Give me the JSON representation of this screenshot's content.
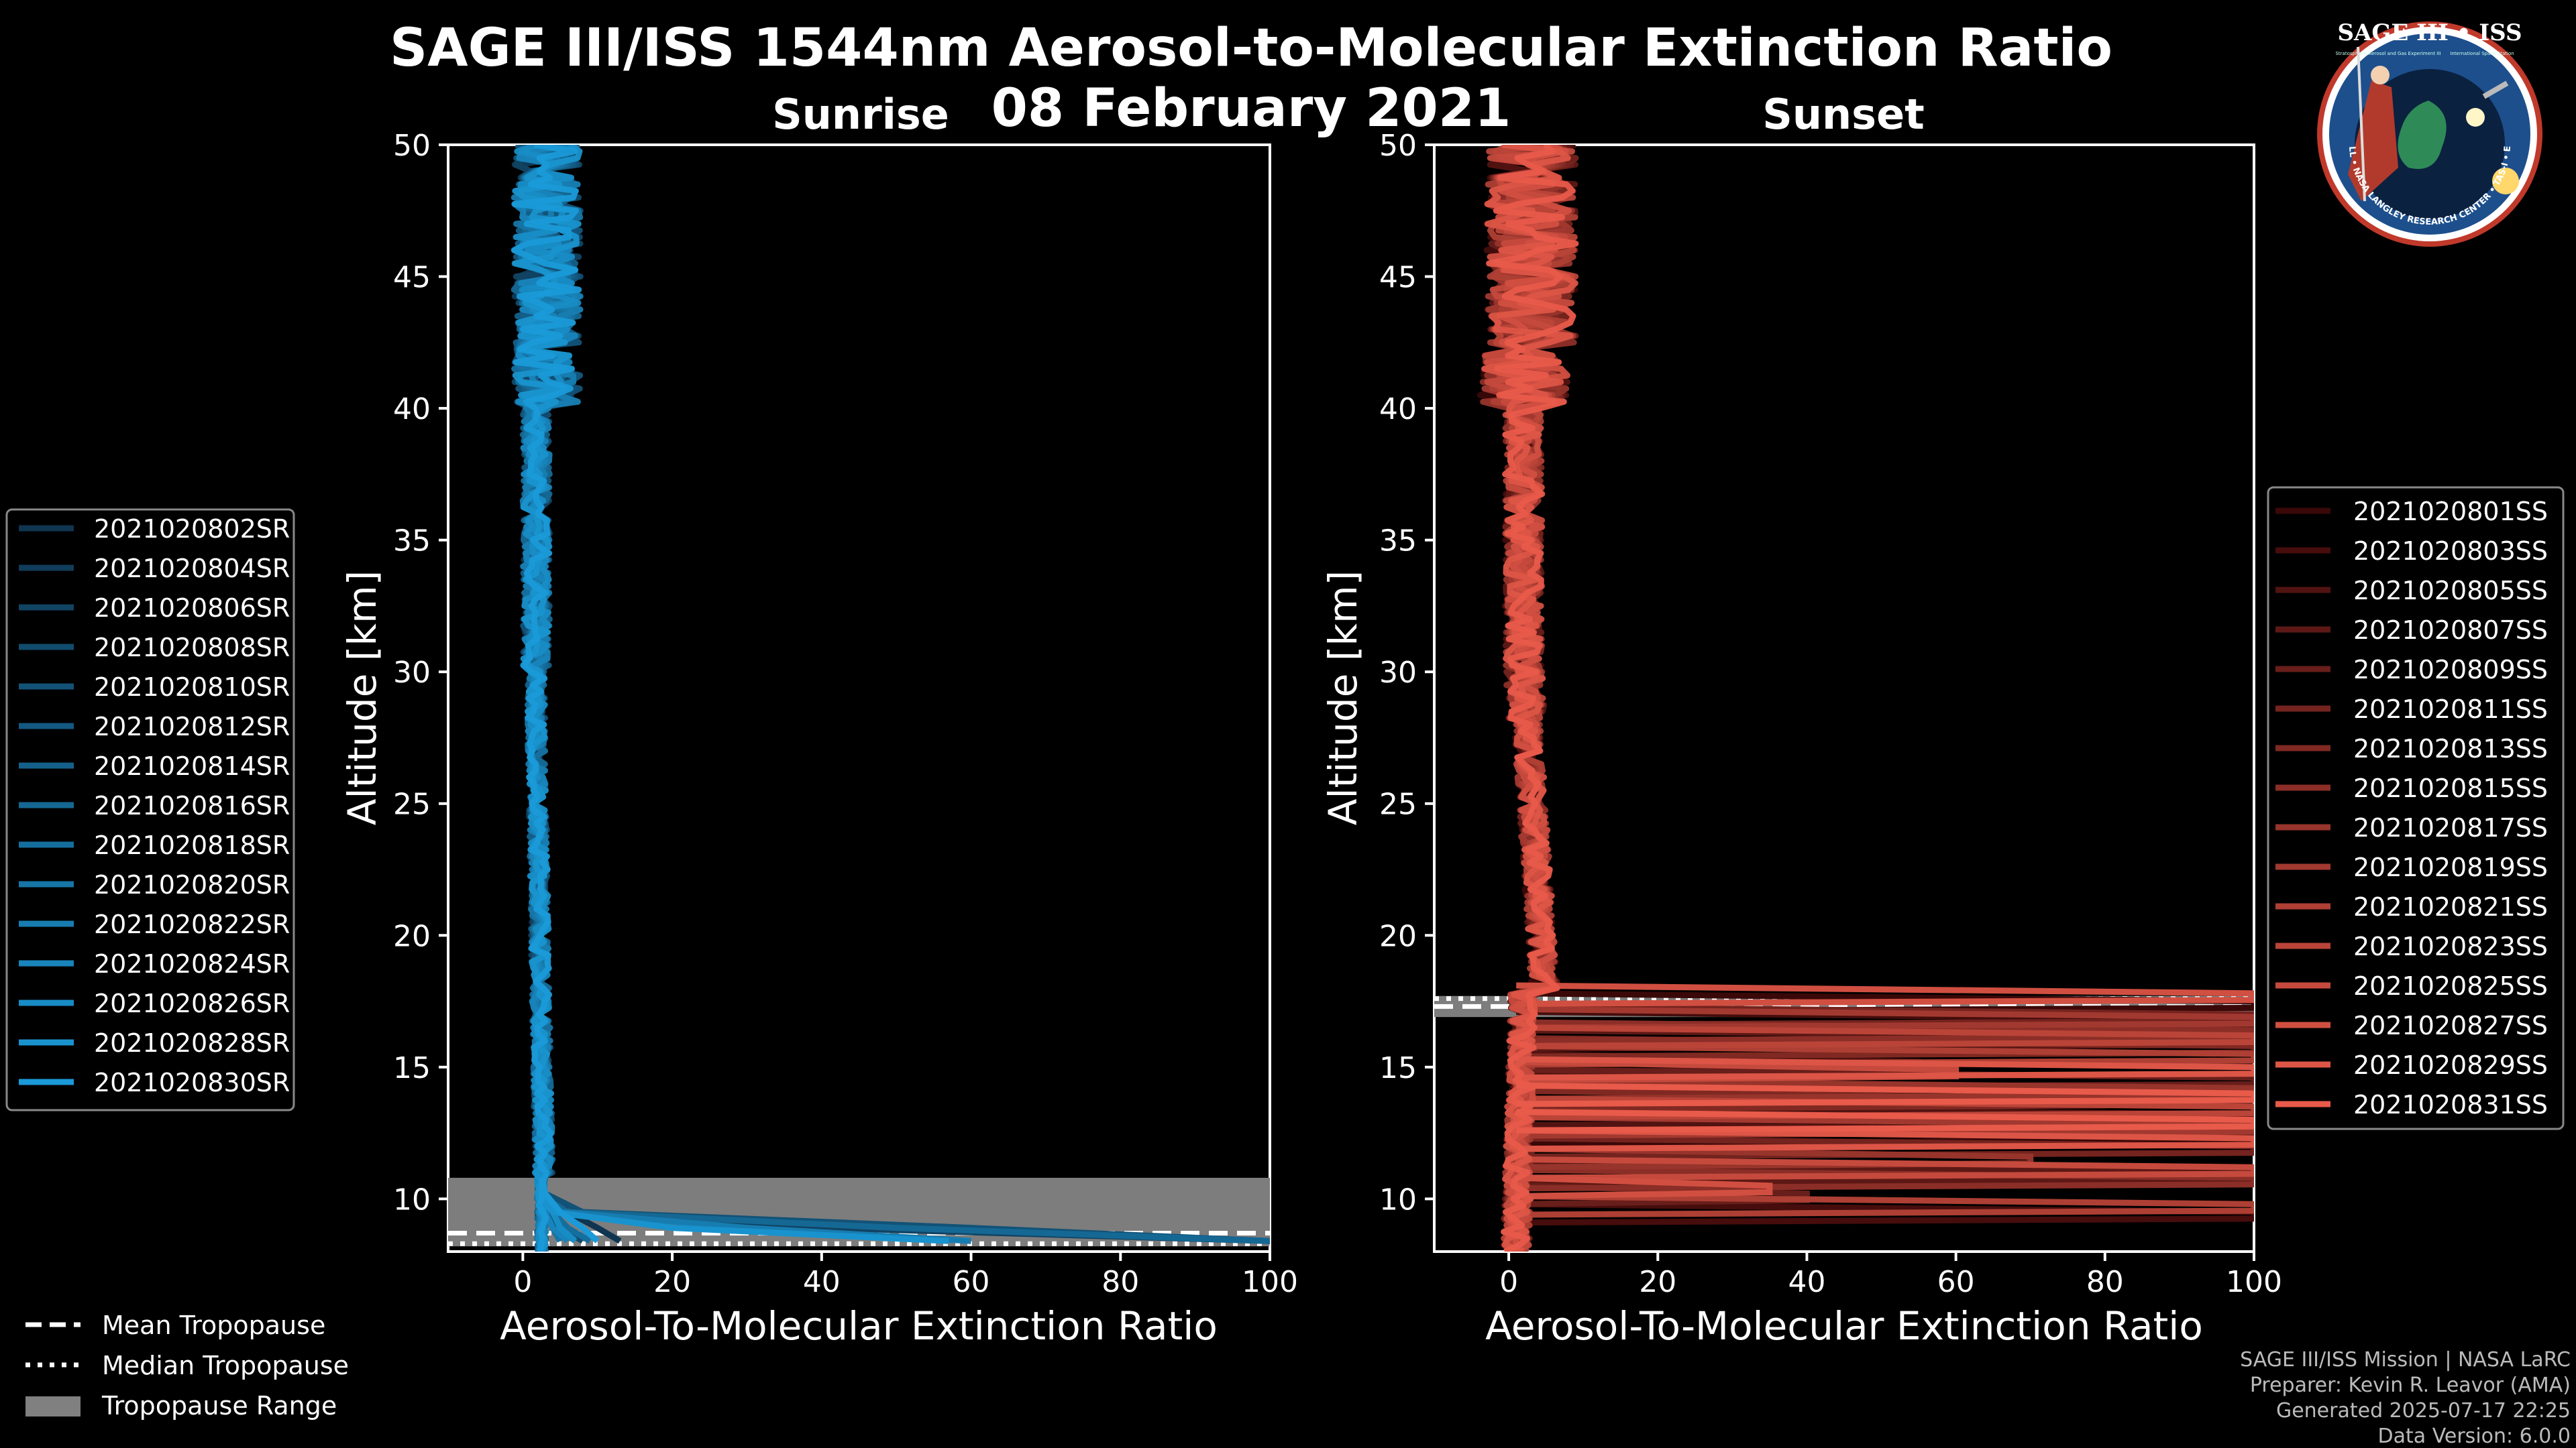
{
  "page": {
    "title_line1": "SAGE III/ISS 1544nm Aerosol-to-Molecular Extinction Ratio",
    "title_line2": "08 February 2021"
  },
  "logo": {
    "top": "SAGE III • ISS",
    "small_left": "Stratospheric Aerosol and Gas Experiment III",
    "small_right": "International Space Station",
    "ring": "BALL • NASA LANGLEY RESEARCH CENTER • TAS-I • ESA"
  },
  "credits": {
    "line1": "SAGE III/ISS Mission | NASA LaRC",
    "line2": "Preparer: Kevin R. Leavor (AMA)",
    "line3": "Generated 2025-07-17 22:25",
    "line4": "Data Version: 6.0.0"
  },
  "tropopause_legend": {
    "mean": "Mean Tropopause",
    "median": "Median Tropopause",
    "range": "Tropopause Range"
  },
  "chart_data": [
    {
      "type": "line",
      "panel": "left",
      "title": "Sunrise",
      "xlabel": "Aerosol-To-Molecular Extinction Ratio",
      "ylabel": "Altitude [km]",
      "xlim": [
        -10,
        100
      ],
      "ylim": [
        8,
        50
      ],
      "xticks": [
        "0",
        "20",
        "40",
        "60",
        "80",
        "100"
      ],
      "yticks": [
        "10",
        "15",
        "20",
        "25",
        "30",
        "35",
        "40",
        "45",
        "50"
      ],
      "color_dark": "#0f3550",
      "color_light": "#1a9ad8",
      "tropopause": {
        "mean": 8.7,
        "median": 8.3,
        "range": [
          8.2,
          10.8
        ]
      },
      "legend_position": "left",
      "series": [
        {
          "name": "2021020802SR",
          "low_alt_x": [
            3,
            6,
            10,
            13
          ]
        },
        {
          "name": "2021020804SR",
          "low_alt_x": [
            2,
            3,
            4,
            5
          ]
        },
        {
          "name": "2021020806SR",
          "low_alt_x": [
            3,
            5,
            40,
            100
          ]
        },
        {
          "name": "2021020808SR",
          "low_alt_x": [
            2,
            3,
            5,
            8
          ]
        },
        {
          "name": "2021020810SR",
          "low_alt_x": [
            3,
            8,
            60,
            100
          ]
        },
        {
          "name": "2021020812SR",
          "low_alt_x": [
            2,
            4,
            6,
            7
          ]
        },
        {
          "name": "2021020814SR",
          "low_alt_x": [
            3,
            4,
            5,
            6
          ]
        },
        {
          "name": "2021020816SR",
          "low_alt_x": [
            2,
            6,
            50,
            100
          ]
        },
        {
          "name": "2021020818SR",
          "low_alt_x": [
            3,
            4,
            6,
            9
          ]
        },
        {
          "name": "2021020820SR",
          "low_alt_x": [
            2,
            3,
            4,
            5
          ]
        },
        {
          "name": "2021020822SR",
          "low_alt_x": [
            3,
            5,
            30,
            60
          ]
        },
        {
          "name": "2021020824SR",
          "low_alt_x": [
            2,
            3,
            4,
            6
          ]
        },
        {
          "name": "2021020826SR",
          "low_alt_x": [
            3,
            4,
            5,
            7
          ]
        },
        {
          "name": "2021020828SR",
          "low_alt_x": [
            2,
            4,
            20,
            57
          ]
        },
        {
          "name": "2021020830SR",
          "low_alt_x": [
            3,
            5,
            8,
            10
          ]
        }
      ]
    },
    {
      "type": "line",
      "panel": "right",
      "title": "Sunset",
      "xlabel": "Aerosol-To-Molecular Extinction Ratio",
      "ylabel": "Altitude [km]",
      "xlim": [
        -10,
        100
      ],
      "ylim": [
        8,
        50
      ],
      "xticks": [
        "0",
        "20",
        "40",
        "60",
        "80",
        "100"
      ],
      "yticks": [
        "10",
        "15",
        "20",
        "25",
        "30",
        "35",
        "40",
        "45",
        "50"
      ],
      "color_dark": "#3a0808",
      "color_light": "#e85a4a",
      "tropopause": {
        "mean": 17.3,
        "median": 17.6,
        "range": [
          16.9,
          17.7
        ]
      },
      "legend_position": "right",
      "series": [
        {
          "name": "2021020801SS",
          "spikes": [
            [
              17.5,
              100
            ],
            [
              12.5,
              100
            ]
          ]
        },
        {
          "name": "2021020803SS",
          "spikes": [
            [
              16.8,
              100
            ],
            [
              9.5,
              100
            ]
          ]
        },
        {
          "name": "2021020805SS",
          "spikes": [
            [
              15.2,
              55
            ],
            [
              13.2,
              100
            ]
          ]
        },
        {
          "name": "2021020807SS",
          "spikes": [
            [
              16.1,
              100
            ],
            [
              11.0,
              100
            ]
          ]
        },
        {
          "name": "2021020809SS",
          "spikes": [
            [
              14.6,
              100
            ],
            [
              10.2,
              40
            ]
          ]
        },
        {
          "name": "2021020811SS",
          "spikes": [
            [
              17.0,
              100
            ],
            [
              12.0,
              100
            ]
          ]
        },
        {
          "name": "2021020813SS",
          "spikes": [
            [
              15.8,
              100
            ],
            [
              13.8,
              80
            ]
          ]
        },
        {
          "name": "2021020815SS",
          "spikes": [
            [
              16.4,
              100
            ],
            [
              10.8,
              100
            ]
          ]
        },
        {
          "name": "2021020817SS",
          "spikes": [
            [
              14.2,
              100
            ],
            [
              11.6,
              70
            ]
          ]
        },
        {
          "name": "2021020819SS",
          "spikes": [
            [
              16.9,
              100
            ],
            [
              12.8,
              100
            ]
          ]
        },
        {
          "name": "2021020821SS",
          "spikes": [
            [
              15.5,
              100
            ],
            [
              9.8,
              100
            ]
          ]
        },
        {
          "name": "2021020823SS",
          "spikes": [
            [
              16.2,
              100
            ],
            [
              13.5,
              100
            ]
          ]
        },
        {
          "name": "2021020825SS",
          "spikes": [
            [
              14.9,
              60
            ],
            [
              11.2,
              100
            ]
          ]
        },
        {
          "name": "2021020827SS",
          "spikes": [
            [
              17.8,
              100
            ],
            [
              10.5,
              35
            ]
          ]
        },
        {
          "name": "2021020829SS",
          "spikes": [
            [
              15.0,
              100
            ],
            [
              12.3,
              100
            ]
          ]
        },
        {
          "name": "2021020831SS",
          "spikes": [
            [
              14.0,
              100
            ],
            [
              13.0,
              100
            ]
          ]
        }
      ]
    }
  ]
}
